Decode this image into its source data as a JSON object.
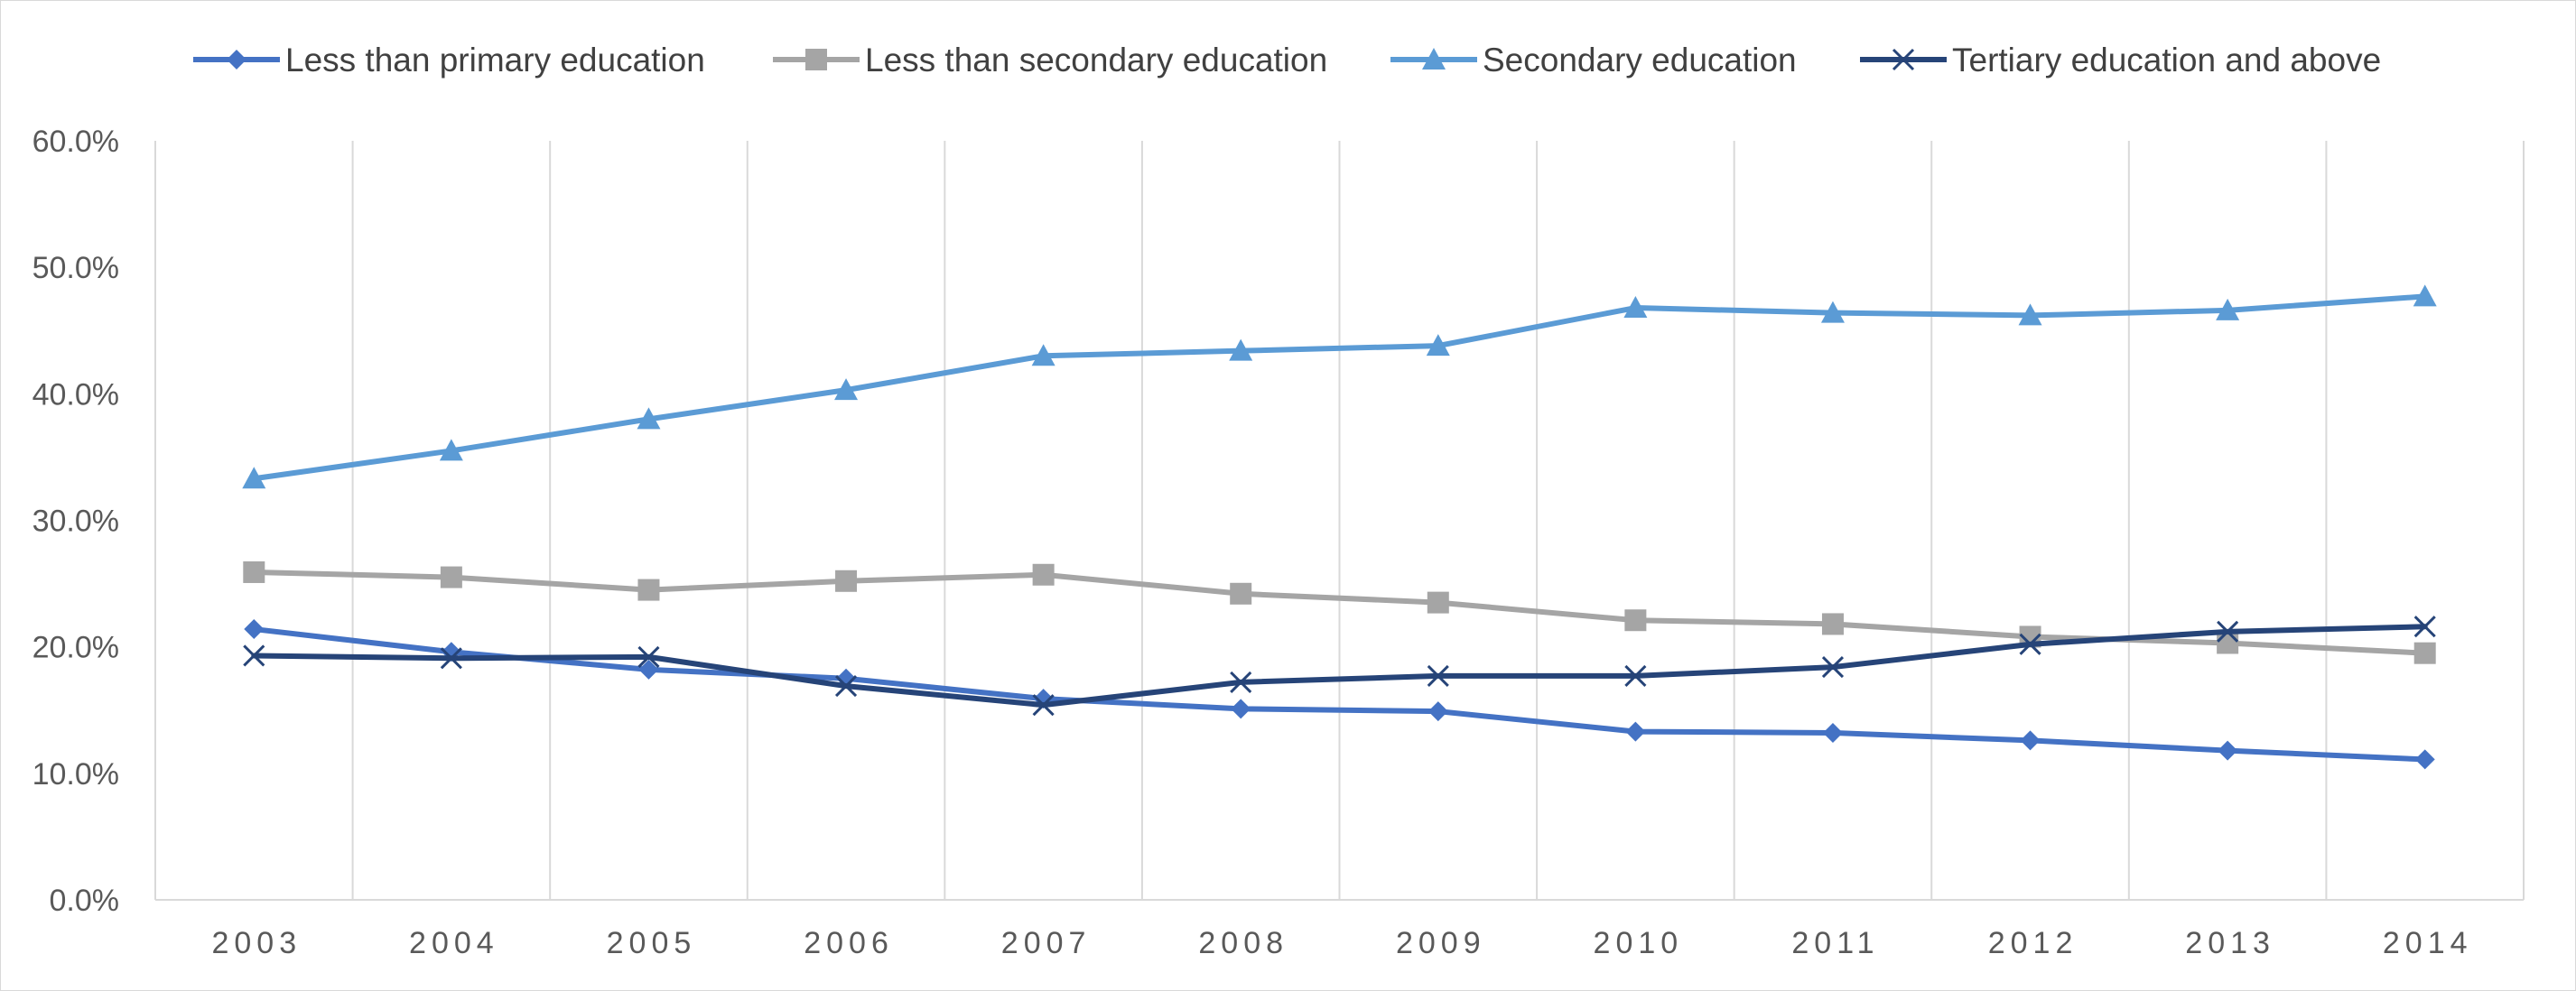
{
  "chart_data": {
    "type": "line",
    "title": "",
    "xlabel": "",
    "ylabel": "",
    "categories": [
      "2003",
      "2004",
      "2005",
      "2006",
      "2007",
      "2008",
      "2009",
      "2010",
      "2011",
      "2012",
      "2013",
      "2014"
    ],
    "ylim": [
      0,
      0.6
    ],
    "yticks": [
      0,
      0.1,
      0.2,
      0.3,
      0.4,
      0.5,
      0.6
    ],
    "ytick_labels": [
      "0.0%",
      "10.0%",
      "20.0%",
      "30.0%",
      "40.0%",
      "50.0%",
      "60.0%"
    ],
    "grid": "vertical",
    "legend_position": "top",
    "series": [
      {
        "name": "Less than primary education",
        "color": "#4472c4",
        "marker": "diamond",
        "values": [
          0.214,
          0.196,
          0.182,
          0.175,
          0.159,
          0.151,
          0.149,
          0.133,
          0.132,
          0.126,
          0.118,
          0.111
        ]
      },
      {
        "name": "Less than secondary education",
        "color": "#a5a5a5",
        "marker": "square",
        "values": [
          0.259,
          0.255,
          0.245,
          0.252,
          0.257,
          0.242,
          0.235,
          0.221,
          0.218,
          0.208,
          0.203,
          0.195
        ]
      },
      {
        "name": "Secondary education",
        "color": "#5b9bd5",
        "marker": "triangle",
        "values": [
          0.333,
          0.355,
          0.38,
          0.403,
          0.43,
          0.434,
          0.438,
          0.468,
          0.464,
          0.462,
          0.466,
          0.477
        ]
      },
      {
        "name": "Tertiary education and above",
        "color": "#264478",
        "marker": "x",
        "values": [
          0.193,
          0.191,
          0.192,
          0.169,
          0.154,
          0.172,
          0.177,
          0.177,
          0.184,
          0.202,
          0.212,
          0.216
        ]
      }
    ]
  }
}
